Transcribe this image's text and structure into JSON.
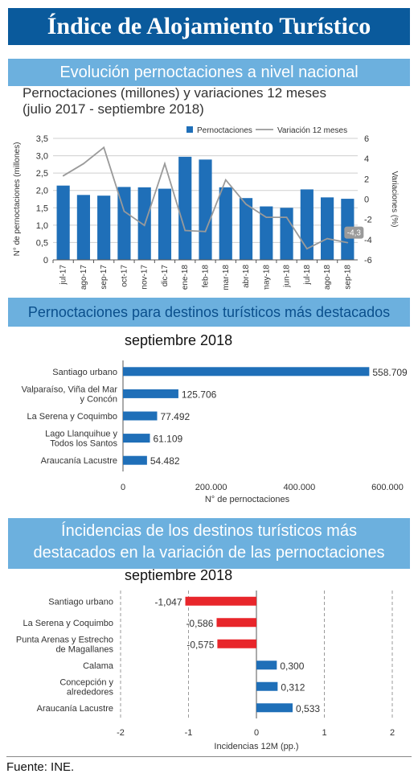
{
  "header": {
    "title": "Índice de Alojamiento Turístico"
  },
  "section1": {
    "band": "Evolución pernoctaciones a nivel nacional",
    "subtitle_line1": "Pernoctaciones (millones) y variaciones 12 meses",
    "subtitle_line2": "(julio 2017 - septiembre 2018)"
  },
  "section2": {
    "band": "Pernoctaciones para  destinos turísticos más destacados",
    "period": "septiembre 2018"
  },
  "section3": {
    "band_line1": "Íncidencias de los destinos turísticos más",
    "band_line2": "destacados en la variación de las pernoctaciones",
    "period": "septiembre 2018"
  },
  "footer": {
    "source": "Fuente: INE."
  },
  "colors": {
    "bar_blue": "#1f6fb8",
    "bar_red": "#e8262b",
    "line_gray": "#9a9a9a",
    "band": "#6cb0de",
    "banner": "#0a5a9c"
  },
  "chart_data": [
    {
      "type": "bar",
      "categories": [
        "jul-17",
        "ago-17",
        "sep-17",
        "oct-17",
        "nov-17",
        "dic-17",
        "ene-18",
        "feb-18",
        "mar-18",
        "abr-18",
        "may-18",
        "jun-18",
        "jul-18",
        "ago-18",
        "sep-18"
      ],
      "series": [
        {
          "name": "Pernoctaciones",
          "type": "bar",
          "axis": "left",
          "values": [
            2.14,
            1.87,
            1.85,
            2.1,
            2.09,
            2.05,
            2.97,
            2.89,
            2.09,
            1.78,
            1.54,
            1.5,
            2.03,
            1.8,
            1.76
          ]
        },
        {
          "name": "Variación 12 meses",
          "type": "line",
          "axis": "right",
          "values": [
            2.3,
            3.5,
            5.1,
            -1.2,
            -2.6,
            3.5,
            -3.1,
            -3.2,
            1.9,
            -0.5,
            -1.8,
            -1.8,
            -4.9,
            -3.9,
            -4.3
          ]
        }
      ],
      "ylabel": "N° de pernoctaciones (millones)",
      "ylim": [
        0,
        3.5
      ],
      "yticks": [
        "0",
        "0,5",
        "1,0",
        "1,5",
        "2,0",
        "2,5",
        "3,0",
        "3,5"
      ],
      "y2label": "Variaciones (%)",
      "y2lim": [
        -6,
        6
      ],
      "y2ticks": [
        "-6",
        "-4",
        "-2",
        "0",
        "2",
        "4",
        "6"
      ],
      "last_value_label": "-4,3",
      "grid": true,
      "legend": "top"
    },
    {
      "type": "bar",
      "orientation": "horizontal",
      "categories": [
        [
          "Santiago urbano"
        ],
        [
          "Valparaíso, Viña del Mar",
          "y Concón"
        ],
        [
          "La Serena y Coquimbo"
        ],
        [
          "Lago Llanquihue y",
          "Todos los Santos"
        ],
        [
          "Araucanía Lacustre"
        ]
      ],
      "values": [
        558709,
        125706,
        77492,
        61109,
        54482
      ],
      "value_labels": [
        "558.709",
        "125.706",
        "77.492",
        "61.109",
        "54.482"
      ],
      "xlabel": "N° de pernoctaciones",
      "xlim": [
        0,
        600000
      ],
      "xticks": [
        "0",
        "200.000",
        "400.000",
        "600.000"
      ],
      "grid": false
    },
    {
      "type": "bar",
      "orientation": "horizontal",
      "categories": [
        [
          "Santiago urbano"
        ],
        [
          "La Serena y Coquimbo"
        ],
        [
          "Punta Arenas y Estrecho",
          "de Magallanes"
        ],
        [
          "Calama"
        ],
        [
          "Concepción y",
          "alrededores"
        ],
        [
          "Araucanía Lacustre"
        ]
      ],
      "values": [
        -1.047,
        -0.586,
        -0.575,
        0.3,
        0.312,
        0.533
      ],
      "value_labels": [
        "-1,047",
        "-0,586",
        "-0,575",
        "0,300",
        "0,312",
        "0,533"
      ],
      "xlabel": "Incidencias 12M (pp.)",
      "xlim": [
        -2,
        2
      ],
      "xticks": [
        "-2",
        "-1",
        "0",
        "1",
        "2"
      ],
      "grid": true
    }
  ]
}
